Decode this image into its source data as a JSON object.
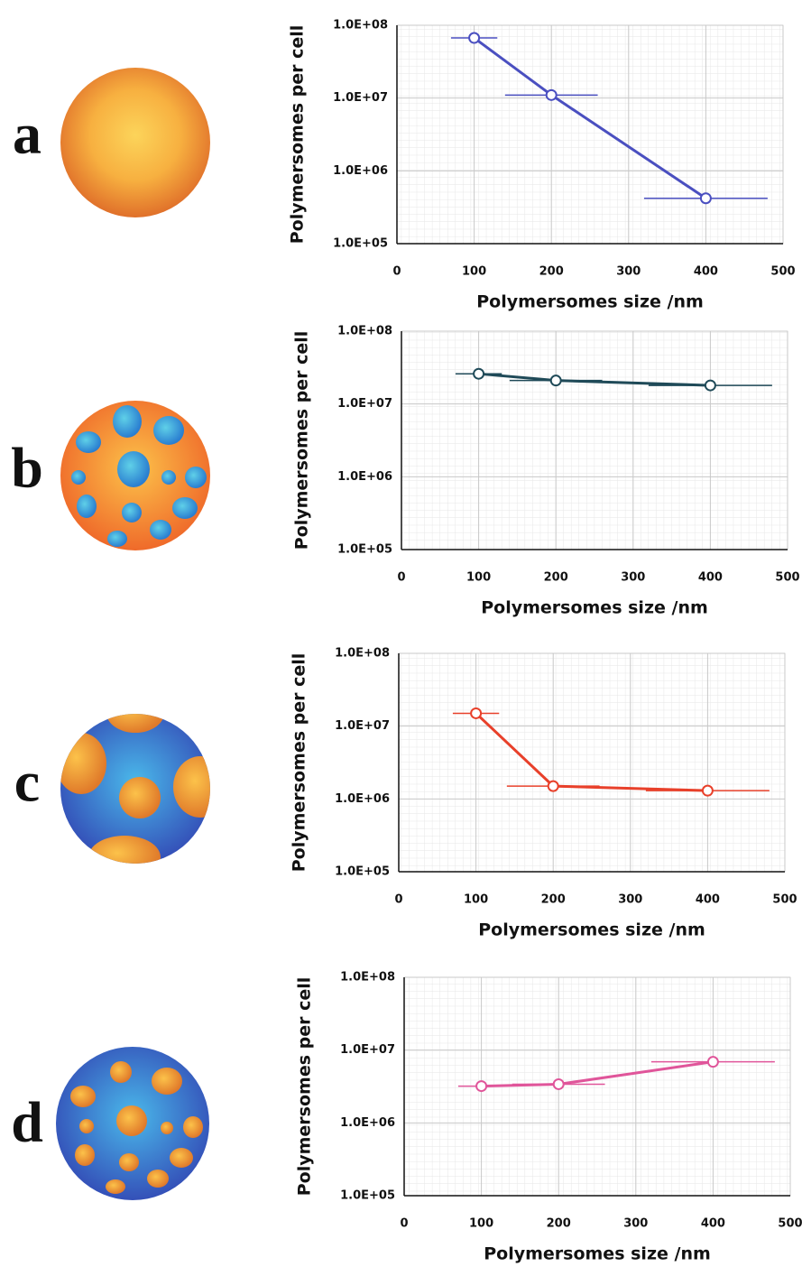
{
  "chart_data": [
    {
      "type": "line",
      "panel_label": "a",
      "xlabel": "Polymersomes size /nm",
      "ylabel": "Polymersomes per cell",
      "x": [
        100,
        200,
        400
      ],
      "x_error": [
        30,
        60,
        80
      ],
      "series": [
        {
          "color": "#4a4fc0",
          "values": [
            67000000,
            11000000,
            420000
          ]
        }
      ],
      "xlim": [
        0,
        500
      ],
      "xticks": [
        0,
        100,
        200,
        300,
        400,
        500
      ],
      "ylim": [
        100000,
        100000000
      ],
      "log_y": true,
      "grid": true,
      "yticks": [
        {
          "value": 100000,
          "label": "1.0E+05"
        },
        {
          "value": 1000000,
          "label": "1.0E+06"
        },
        {
          "value": 10000000,
          "label": "1.0E+07"
        },
        {
          "value": 100000000,
          "label": "1.0E+08"
        }
      ]
    },
    {
      "type": "line",
      "panel_label": "b",
      "xlabel": "Polymersomes size /nm",
      "ylabel": "Polymersomes per cell",
      "x": [
        100,
        200,
        400
      ],
      "x_error": [
        30,
        60,
        80
      ],
      "series": [
        {
          "color": "#1f4a58",
          "values": [
            26000000,
            21000000,
            18000000
          ]
        }
      ],
      "xlim": [
        0,
        500
      ],
      "xticks": [
        0,
        100,
        200,
        300,
        400,
        500
      ],
      "ylim": [
        100000,
        100000000
      ],
      "log_y": true,
      "grid": true,
      "yticks": [
        {
          "value": 100000,
          "label": "1.0E+05"
        },
        {
          "value": 1000000,
          "label": "1.0E+06"
        },
        {
          "value": 10000000,
          "label": "1.0E+07"
        },
        {
          "value": 100000000,
          "label": "1.0E+08"
        }
      ]
    },
    {
      "type": "line",
      "panel_label": "c",
      "xlabel": "Polymersomes size /nm",
      "ylabel": "Polymersomes per cell",
      "x": [
        100,
        200,
        400
      ],
      "x_error": [
        30,
        60,
        80
      ],
      "series": [
        {
          "color": "#e8402a",
          "values": [
            15000000,
            1500000,
            1300000
          ]
        }
      ],
      "xlim": [
        0,
        500
      ],
      "xticks": [
        0,
        100,
        200,
        300,
        400,
        500
      ],
      "ylim": [
        100000,
        100000000
      ],
      "log_y": true,
      "grid": true,
      "yticks": [
        {
          "value": 100000,
          "label": "1.0E+05"
        },
        {
          "value": 1000000,
          "label": "1.0E+06"
        },
        {
          "value": 10000000,
          "label": "1.0E+07"
        },
        {
          "value": 100000000,
          "label": "1.0E+08"
        }
      ]
    },
    {
      "type": "line",
      "panel_label": "d",
      "xlabel": "Polymersomes size /nm",
      "ylabel": "Polymersomes per cell",
      "x": [
        100,
        200,
        400
      ],
      "x_error": [
        30,
        60,
        80
      ],
      "series": [
        {
          "color": "#e0559a",
          "values": [
            3200000,
            3400000,
            6900000
          ]
        }
      ],
      "xlim": [
        0,
        500
      ],
      "xticks": [
        0,
        100,
        200,
        300,
        400,
        500
      ],
      "ylim": [
        100000,
        100000000
      ],
      "log_y": true,
      "grid": true,
      "yticks": [
        {
          "value": 100000,
          "label": "1.0E+05"
        },
        {
          "value": 1000000,
          "label": "1.0E+06"
        },
        {
          "value": 10000000,
          "label": "1.0E+07"
        },
        {
          "value": 100000000,
          "label": "1.0E+08"
        }
      ]
    }
  ]
}
